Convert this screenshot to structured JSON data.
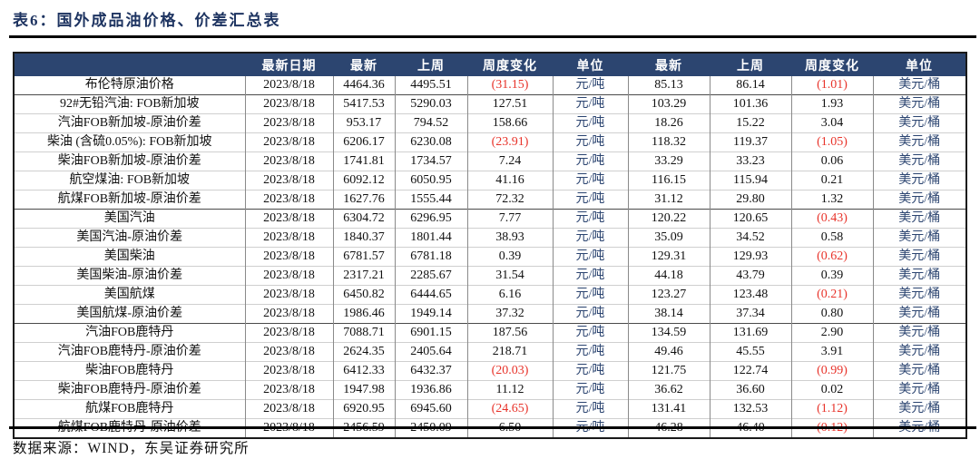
{
  "page": {
    "title": "表6：国外成品油价格、价差汇总表",
    "footer": "数据来源：WIND，东吴证券研究所"
  },
  "colors": {
    "header_bg": "#2c4570",
    "title_navy": "#1e3461",
    "negative_red": "#e8332a",
    "unit_navy": "#2b4470"
  },
  "table": {
    "headers": [
      "",
      "最新日期",
      "最新",
      "上周",
      "周度变化",
      "单位",
      "最新",
      "上周",
      "周度变化",
      "单位"
    ],
    "groups": [
      {
        "rows": [
          [
            "布伦特原油价格",
            "2023/8/18",
            "4464.36",
            "4495.51",
            "(31.15)",
            "元/吨",
            "85.13",
            "86.14",
            "(1.01)",
            "美元/桶"
          ]
        ]
      },
      {
        "rows": [
          [
            "92#无铅汽油: FOB新加坡",
            "2023/8/18",
            "5417.53",
            "5290.03",
            "127.51",
            "元/吨",
            "103.29",
            "101.36",
            "1.93",
            "美元/桶"
          ],
          [
            "汽油FOB新加坡-原油价差",
            "2023/8/18",
            "953.17",
            "794.52",
            "158.66",
            "元/吨",
            "18.26",
            "15.22",
            "3.04",
            "美元/桶"
          ],
          [
            "柴油 (含硫0.05%): FOB新加坡",
            "2023/8/18",
            "6206.17",
            "6230.08",
            "(23.91)",
            "元/吨",
            "118.32",
            "119.37",
            "(1.05)",
            "美元/桶"
          ],
          [
            "柴油FOB新加坡-原油价差",
            "2023/8/18",
            "1741.81",
            "1734.57",
            "7.24",
            "元/吨",
            "33.29",
            "33.23",
            "0.06",
            "美元/桶"
          ],
          [
            "航空煤油: FOB新加坡",
            "2023/8/18",
            "6092.12",
            "6050.95",
            "41.16",
            "元/吨",
            "116.15",
            "115.94",
            "0.21",
            "美元/桶"
          ],
          [
            "航煤FOB新加坡-原油价差",
            "2023/8/18",
            "1627.76",
            "1555.44",
            "72.32",
            "元/吨",
            "31.12",
            "29.80",
            "1.32",
            "美元/桶"
          ]
        ]
      },
      {
        "rows": [
          [
            "美国汽油",
            "2023/8/18",
            "6304.72",
            "6296.95",
            "7.77",
            "元/吨",
            "120.22",
            "120.65",
            "(0.43)",
            "美元/桶"
          ],
          [
            "美国汽油-原油价差",
            "2023/8/18",
            "1840.37",
            "1801.44",
            "38.93",
            "元/吨",
            "35.09",
            "34.52",
            "0.58",
            "美元/桶"
          ],
          [
            "美国柴油",
            "2023/8/18",
            "6781.57",
            "6781.18",
            "0.39",
            "元/吨",
            "129.31",
            "129.93",
            "(0.62)",
            "美元/桶"
          ],
          [
            "美国柴油-原油价差",
            "2023/8/18",
            "2317.21",
            "2285.67",
            "31.54",
            "元/吨",
            "44.18",
            "43.79",
            "0.39",
            "美元/桶"
          ],
          [
            "美国航煤",
            "2023/8/18",
            "6450.82",
            "6444.65",
            "6.16",
            "元/吨",
            "123.27",
            "123.48",
            "(0.21)",
            "美元/桶"
          ],
          [
            "美国航煤-原油价差",
            "2023/8/18",
            "1986.46",
            "1949.14",
            "37.32",
            "元/吨",
            "38.14",
            "37.34",
            "0.80",
            "美元/桶"
          ]
        ]
      },
      {
        "rows": [
          [
            "汽油FOB鹿特丹",
            "2023/8/18",
            "7088.71",
            "6901.15",
            "187.56",
            "元/吨",
            "134.59",
            "131.69",
            "2.90",
            "美元/桶"
          ],
          [
            "汽油FOB鹿特丹-原油价差",
            "2023/8/18",
            "2624.35",
            "2405.64",
            "218.71",
            "元/吨",
            "49.46",
            "45.55",
            "3.91",
            "美元/桶"
          ],
          [
            "柴油FOB鹿特丹",
            "2023/8/18",
            "6412.33",
            "6432.37",
            "(20.03)",
            "元/吨",
            "121.75",
            "122.74",
            "(0.99)",
            "美元/桶"
          ],
          [
            "柴油FOB鹿特丹-原油价差",
            "2023/8/18",
            "1947.98",
            "1936.86",
            "11.12",
            "元/吨",
            "36.62",
            "36.60",
            "0.02",
            "美元/桶"
          ],
          [
            "航煤FOB鹿特丹",
            "2023/8/18",
            "6920.95",
            "6945.60",
            "(24.65)",
            "元/吨",
            "131.41",
            "132.53",
            "(1.12)",
            "美元/桶"
          ],
          [
            "航煤FOB鹿特丹-原油价差",
            "2023/8/18",
            "2456.59",
            "2450.09",
            "6.50",
            "元/吨",
            "46.28",
            "46.40",
            "(0.12)",
            "美元/桶"
          ]
        ]
      }
    ]
  }
}
